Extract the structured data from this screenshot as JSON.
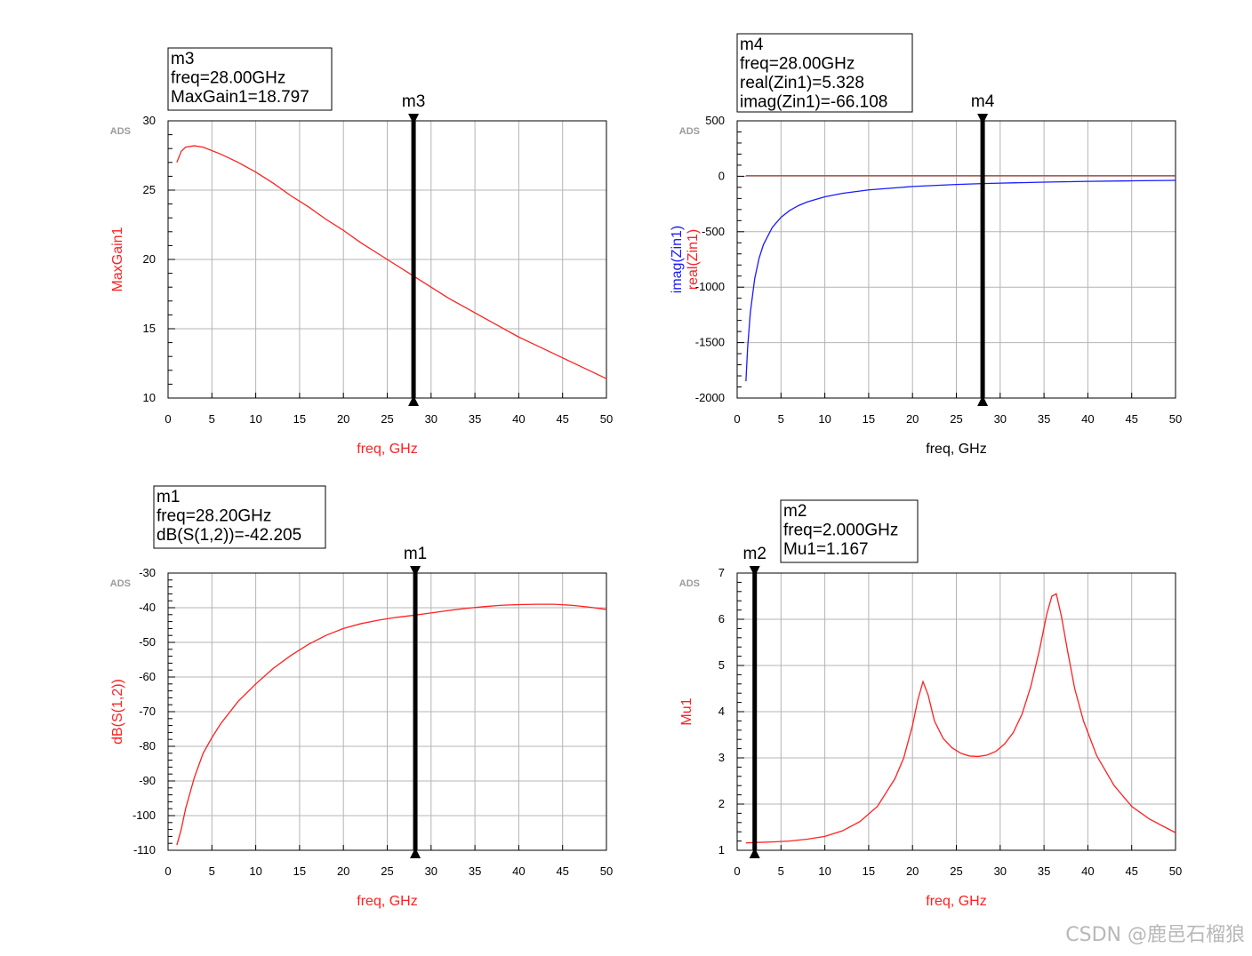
{
  "watermark": "CSDN @鹿邑石榴狼",
  "colors": {
    "red": "#ff2020",
    "blue": "#1a1aff",
    "grid": "#b4b4b4",
    "frame": "#000000",
    "ads": "#9a9a9a"
  },
  "chart_data": [
    {
      "id": "maxgain",
      "type": "line",
      "logo": "ADS",
      "xlabel": "freq, GHz",
      "xlabel_color": "#ff2020",
      "ylabels": [
        {
          "text": "MaxGain1",
          "color": "#ff2020"
        }
      ],
      "xlim": [
        0,
        50
      ],
      "ylim": [
        10,
        30
      ],
      "xticks": [
        0,
        5,
        10,
        15,
        20,
        25,
        30,
        35,
        40,
        45,
        50
      ],
      "yticks": [
        10,
        15,
        20,
        25,
        30
      ],
      "yminor_step": 1,
      "series": [
        {
          "name": "MaxGain1",
          "color": "#ff2020",
          "x": [
            1,
            1.5,
            2,
            3,
            4,
            6,
            8,
            10,
            12,
            14,
            16,
            18,
            20,
            22,
            24,
            26,
            28,
            30,
            32,
            34,
            36,
            38,
            40,
            42,
            44,
            46,
            48,
            50
          ],
          "y": [
            27.0,
            27.8,
            28.1,
            28.2,
            28.1,
            27.6,
            27.0,
            26.3,
            25.5,
            24.6,
            23.8,
            22.9,
            22.1,
            21.2,
            20.4,
            19.6,
            18.8,
            18.0,
            17.2,
            16.5,
            15.8,
            15.1,
            14.4,
            13.8,
            13.2,
            12.6,
            12.0,
            11.4
          ]
        }
      ],
      "marker": {
        "name": "m3",
        "x": 28.0,
        "lines": [
          "m3",
          "freq=28.00GHz",
          "MaxGain1=18.797"
        ]
      }
    },
    {
      "id": "zin",
      "type": "line",
      "logo": "ADS",
      "xlabel": "freq, GHz",
      "xlabel_color": "#000000",
      "ylabels": [
        {
          "text": "imag(Zin1)",
          "color": "#1a1aff"
        },
        {
          "text": "real(Zin1)",
          "color": "#ff2020"
        }
      ],
      "xlim": [
        0,
        50
      ],
      "ylim": [
        -2000,
        500
      ],
      "xticks": [
        0,
        5,
        10,
        15,
        20,
        25,
        30,
        35,
        40,
        45,
        50
      ],
      "yticks": [
        -2000,
        -1500,
        -1000,
        -500,
        0,
        500
      ],
      "yminor_step": 100,
      "series": [
        {
          "name": "real(Zin1)",
          "color": "#c0392b",
          "x": [
            1,
            5,
            10,
            20,
            30,
            40,
            50
          ],
          "y": [
            5,
            5,
            5,
            5,
            5,
            5,
            5
          ]
        },
        {
          "name": "imag(Zin1)",
          "color": "#1a1aff",
          "x": [
            1,
            1.2,
            1.5,
            2,
            2.5,
            3,
            4,
            5,
            6,
            7,
            8,
            10,
            12,
            15,
            20,
            25,
            28,
            30,
            35,
            40,
            45,
            50
          ],
          "y": [
            -1848,
            -1540,
            -1232,
            -924,
            -739,
            -616,
            -462,
            -370,
            -308,
            -264,
            -231,
            -185,
            -154,
            -123,
            -92,
            -74,
            -66,
            -62,
            -53,
            -46,
            -41,
            -37
          ]
        }
      ],
      "marker": {
        "name": "m4",
        "x": 28.0,
        "lines": [
          "m4",
          "freq=28.00GHz",
          "real(Zin1)=5.328",
          "imag(Zin1)=-66.108"
        ]
      }
    },
    {
      "id": "s12",
      "type": "line",
      "logo": "ADS",
      "xlabel": "freq, GHz",
      "xlabel_color": "#ff2020",
      "ylabels": [
        {
          "text": "dB(S(1,2))",
          "color": "#ff2020"
        }
      ],
      "xlim": [
        0,
        50
      ],
      "ylim": [
        -110,
        -30
      ],
      "xticks": [
        0,
        5,
        10,
        15,
        20,
        25,
        30,
        35,
        40,
        45,
        50
      ],
      "yticks": [
        -110,
        -100,
        -90,
        -80,
        -70,
        -60,
        -50,
        -40,
        -30
      ],
      "yminor_step": 2,
      "series": [
        {
          "name": "dB(S(1,2))",
          "color": "#ff2020",
          "x": [
            1,
            1.5,
            2,
            3,
            4,
            5,
            6,
            8,
            10,
            12,
            14,
            16,
            18,
            20,
            22,
            24,
            26,
            28,
            30,
            32,
            34,
            36,
            38,
            40,
            42,
            44,
            46,
            48,
            50
          ],
          "y": [
            -108.5,
            -104,
            -98,
            -89,
            -82,
            -77.5,
            -73.5,
            -67,
            -62,
            -57.5,
            -53.8,
            -50.6,
            -48,
            -46,
            -44.6,
            -43.6,
            -42.8,
            -42.2,
            -41.5,
            -40.8,
            -40.2,
            -39.7,
            -39.3,
            -39.1,
            -39.0,
            -39.0,
            -39.3,
            -39.8,
            -40.5
          ]
        }
      ],
      "marker": {
        "name": "m1",
        "x": 28.2,
        "lines": [
          "m1",
          "freq=28.20GHz",
          "dB(S(1,2))=-42.205"
        ]
      }
    },
    {
      "id": "mu",
      "type": "line",
      "logo": "ADS",
      "xlabel": "freq, GHz",
      "xlabel_color": "#ff2020",
      "ylabels": [
        {
          "text": "Mu1",
          "color": "#ff2020"
        }
      ],
      "xlim": [
        0,
        50
      ],
      "ylim": [
        1,
        7
      ],
      "xticks": [
        0,
        5,
        10,
        15,
        20,
        25,
        30,
        35,
        40,
        45,
        50
      ],
      "yticks": [
        1,
        2,
        3,
        4,
        5,
        6,
        7
      ],
      "yminor_step": 0.2,
      "series": [
        {
          "name": "Mu1",
          "color": "#ff2020",
          "x": [
            1,
            2,
            4,
            6,
            8,
            10,
            12,
            14,
            16,
            18,
            19,
            20,
            20.6,
            21.2,
            21.8,
            22.5,
            23.5,
            24.5,
            25.5,
            26.5,
            27.5,
            28.5,
            29.5,
            30.5,
            31.5,
            32.5,
            33.5,
            34.5,
            35.3,
            35.9,
            36.4,
            37,
            37.7,
            38.5,
            39.5,
            41,
            43,
            45,
            47,
            50
          ],
          "y": [
            1.16,
            1.167,
            1.18,
            1.2,
            1.24,
            1.3,
            1.42,
            1.62,
            1.95,
            2.55,
            3.0,
            3.7,
            4.25,
            4.65,
            4.35,
            3.8,
            3.42,
            3.22,
            3.1,
            3.04,
            3.03,
            3.06,
            3.14,
            3.3,
            3.55,
            3.95,
            4.55,
            5.35,
            6.1,
            6.5,
            6.55,
            6.05,
            5.3,
            4.5,
            3.8,
            3.05,
            2.4,
            1.95,
            1.68,
            1.38
          ]
        }
      ],
      "marker": {
        "name": "m2",
        "x": 2.0,
        "lines": [
          "m2",
          "freq=2.000GHz",
          "Mu1=1.167"
        ]
      }
    }
  ]
}
